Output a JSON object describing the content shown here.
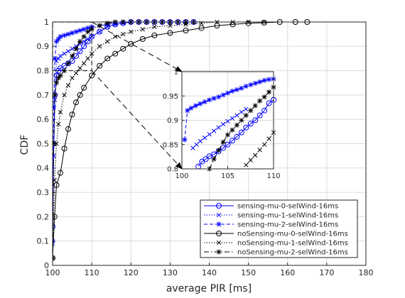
{
  "chart_data": [
    {
      "type": "line",
      "role": "main",
      "xlabel": "average PIR [ms]",
      "ylabel": "CDF",
      "xlim": [
        100,
        180
      ],
      "ylim": [
        0,
        1
      ],
      "xticks": [
        "100",
        "110",
        "120",
        "130",
        "140",
        "150",
        "160",
        "170",
        "180"
      ],
      "yticks": [
        "0",
        "0.1",
        "0.2",
        "0.3",
        "0.4",
        "0.5",
        "0.6",
        "0.7",
        "0.8",
        "0.9",
        "1"
      ],
      "grid": true,
      "legend_position": "bottom-right",
      "series": [
        {
          "name": "sensing-mu-0-selWind-16ms",
          "color": "#0000ff",
          "line": "solid",
          "marker": "circle",
          "x": [
            100,
            100.3,
            100.6,
            101,
            101.5,
            102,
            103,
            104,
            105,
            106,
            107,
            108,
            109,
            110,
            112,
            114,
            116,
            118,
            120,
            122,
            124,
            126,
            128,
            130,
            132,
            134,
            136
          ],
          "y": [
            0.16,
            0.5,
            0.7,
            0.78,
            0.8,
            0.81,
            0.82,
            0.83,
            0.84,
            0.86,
            0.88,
            0.9,
            0.92,
            0.94,
            0.96,
            0.98,
            0.99,
            0.995,
            1,
            1,
            1,
            1,
            1,
            1,
            1,
            1,
            1
          ]
        },
        {
          "name": "sensing-mu-1-selWind-16ms",
          "color": "#0000ff",
          "line": "dotted",
          "marker": "x",
          "x": [
            100,
            100.3,
            100.6,
            101,
            101.5,
            102,
            103,
            104,
            105,
            106,
            107,
            108,
            109,
            110,
            112,
            114,
            116,
            118,
            120,
            122,
            124,
            126,
            128,
            130,
            132,
            134,
            136
          ],
          "y": [
            0.09,
            0.45,
            0.68,
            0.84,
            0.85,
            0.86,
            0.87,
            0.88,
            0.89,
            0.9,
            0.91,
            0.92,
            0.93,
            0.94,
            0.96,
            0.98,
            0.99,
            0.995,
            1,
            1,
            1,
            1,
            1,
            1,
            1,
            1,
            1
          ]
        },
        {
          "name": "sensing-mu-2-selWind-16ms",
          "color": "#0000ff",
          "line": "dashed",
          "marker": "asterisk",
          "x": [
            100,
            100.3,
            100.6,
            101,
            101.5,
            102,
            103,
            104,
            105,
            106,
            107,
            108,
            109,
            110,
            112,
            114,
            116,
            118,
            120,
            122,
            124,
            126,
            128,
            130,
            132,
            134,
            136
          ],
          "y": [
            0.1,
            0.65,
            0.85,
            0.92,
            0.93,
            0.94,
            0.945,
            0.95,
            0.955,
            0.96,
            0.965,
            0.97,
            0.975,
            0.98,
            0.985,
            0.99,
            0.995,
            1,
            1,
            1,
            1,
            1,
            1,
            1,
            1,
            1,
            1
          ]
        },
        {
          "name": "noSensing-mu-0-selWind-16ms",
          "color": "#000000",
          "line": "solid",
          "marker": "circle",
          "x": [
            100,
            100.5,
            101,
            102,
            103,
            104,
            105,
            106,
            107,
            108,
            110,
            112,
            114,
            116,
            118,
            120,
            123,
            126,
            130,
            134,
            138,
            142,
            146,
            150,
            154,
            158,
            162,
            165
          ],
          "y": [
            0.03,
            0.2,
            0.33,
            0.38,
            0.48,
            0.56,
            0.62,
            0.67,
            0.7,
            0.73,
            0.78,
            0.82,
            0.85,
            0.87,
            0.89,
            0.91,
            0.93,
            0.945,
            0.955,
            0.965,
            0.975,
            0.985,
            0.99,
            0.995,
            0.997,
            1,
            1,
            1
          ]
        },
        {
          "name": "noSensing-mu-1-selWind-16ms",
          "color": "#000000",
          "line": "dotted",
          "marker": "x",
          "x": [
            100,
            100.5,
            101,
            101.5,
            102,
            103,
            104,
            105,
            106,
            107,
            108,
            109,
            110,
            112,
            114,
            116,
            118,
            120,
            123,
            126,
            130,
            134,
            138,
            142,
            146,
            150,
            154
          ],
          "y": [
            0.03,
            0.35,
            0.5,
            0.58,
            0.63,
            0.7,
            0.74,
            0.77,
            0.79,
            0.81,
            0.83,
            0.85,
            0.87,
            0.9,
            0.92,
            0.94,
            0.95,
            0.96,
            0.97,
            0.98,
            0.985,
            0.99,
            0.995,
            1,
            1,
            1,
            1
          ]
        },
        {
          "name": "noSensing-mu-2-selWind-16ms",
          "color": "#000000",
          "line": "dashdot",
          "marker": "asterisk",
          "x": [
            100,
            100.3,
            100.6,
            101,
            101.5,
            102,
            103,
            104,
            105,
            106,
            107,
            108,
            109,
            110,
            112,
            114,
            116,
            118,
            120,
            122,
            124,
            126,
            128,
            130,
            132,
            134,
            136
          ],
          "y": [
            0.03,
            0.5,
            0.7,
            0.75,
            0.77,
            0.78,
            0.8,
            0.83,
            0.86,
            0.89,
            0.92,
            0.94,
            0.96,
            0.97,
            0.985,
            0.995,
            1,
            1,
            1,
            1,
            1,
            1,
            1,
            1,
            1,
            1,
            1
          ]
        }
      ]
    },
    {
      "type": "line",
      "role": "inset-zoom",
      "xlim": [
        100,
        110
      ],
      "ylim": [
        0.8,
        1
      ],
      "xticks": [
        "100",
        "105",
        "110"
      ],
      "yticks": [
        "0.8",
        "0.85",
        "0.9",
        "0.95",
        "1"
      ],
      "grid": true,
      "zoom_region": {
        "x": [
          100,
          110
        ],
        "y": [
          0.8,
          1
        ]
      },
      "series": [
        {
          "name": "sensing-mu-0-selWind-16ms",
          "color": "#0000ff",
          "line": "solid",
          "marker": "circle",
          "x": [
            101.8,
            102.2,
            102.6,
            103,
            103.5,
            104,
            104.5,
            105,
            105.5,
            106,
            106.5,
            107,
            107.5,
            108,
            108.5,
            109,
            109.5,
            110
          ],
          "y": [
            0.805,
            0.815,
            0.82,
            0.826,
            0.83,
            0.836,
            0.843,
            0.85,
            0.858,
            0.866,
            0.875,
            0.885,
            0.893,
            0.9,
            0.91,
            0.92,
            0.935,
            0.942
          ]
        },
        {
          "name": "sensing-mu-1-selWind-16ms",
          "color": "#0000ff",
          "line": "dotted",
          "marker": "x",
          "x": [
            101.2,
            101.6,
            102,
            102.5,
            103,
            103.5,
            104,
            104.5,
            105,
            105.5,
            106,
            106.5,
            107
          ],
          "y": [
            0.843,
            0.85,
            0.857,
            0.864,
            0.871,
            0.878,
            0.885,
            0.892,
            0.898,
            0.904,
            0.91,
            0.917,
            0.923
          ]
        },
        {
          "name": "sensing-mu-2-selWind-16ms",
          "color": "#0000ff",
          "line": "dashed",
          "marker": "asterisk",
          "x": [
            100.3,
            100.6,
            101,
            101.5,
            102,
            102.5,
            103,
            103.5,
            104,
            104.5,
            105,
            105.5,
            106,
            106.5,
            107,
            107.5,
            108,
            108.5,
            109,
            109.5,
            110
          ],
          "y": [
            0.86,
            0.92,
            0.925,
            0.93,
            0.934,
            0.938,
            0.942,
            0.945,
            0.948,
            0.952,
            0.956,
            0.96,
            0.963,
            0.966,
            0.97,
            0.973,
            0.976,
            0.979,
            0.982,
            0.984,
            0.985
          ]
        },
        {
          "name": "noSensing-mu-1-selWind-16ms",
          "color": "#000000",
          "line": "dotted",
          "marker": "x",
          "x": [
            107,
            107.5,
            108,
            108.5,
            109,
            109.5,
            110
          ],
          "y": [
            0.808,
            0.818,
            0.828,
            0.839,
            0.85,
            0.862,
            0.875
          ]
        },
        {
          "name": "noSensing-mu-2-selWind-16ms",
          "color": "#000000",
          "line": "dashdot",
          "marker": "asterisk",
          "x": [
            103,
            103.5,
            104,
            104.5,
            105,
            105.5,
            106,
            106.5,
            107,
            107.5,
            108,
            108.5,
            109,
            109.5,
            110
          ],
          "y": [
            0.8,
            0.82,
            0.838,
            0.855,
            0.87,
            0.88,
            0.89,
            0.9,
            0.91,
            0.92,
            0.93,
            0.94,
            0.948,
            0.958,
            0.968
          ]
        }
      ]
    }
  ],
  "legend": {
    "entries": [
      "sensing-mu-0-selWind-16ms",
      "sensing-mu-1-selWind-16ms",
      "sensing-mu-2-selWind-16ms",
      "noSensing-mu-0-selWind-16ms",
      "noSensing-mu-1-selWind-16ms",
      "noSensing-mu-2-selWind-16ms"
    ]
  }
}
